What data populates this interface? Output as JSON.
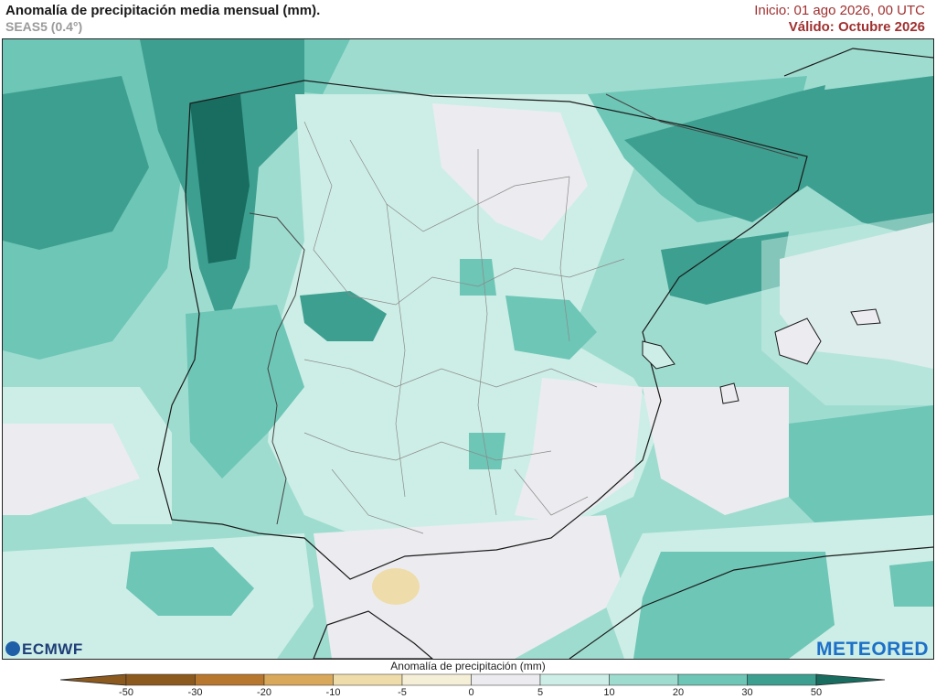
{
  "header": {
    "title": "Anomalía de precipitación media mensual (mm).",
    "model": "SEAS5 (0.4°)",
    "init": "Inicio: 01 ago 2026, 00 UTC",
    "valid": "Válido: Octubre 2026"
  },
  "legend": {
    "title": "Anomalía de precipitación (mm)",
    "ticks": [
      "-50",
      "-30",
      "-20",
      "-10",
      "-5",
      "0",
      "5",
      "10",
      "20",
      "30",
      "50"
    ],
    "colors": [
      "#8c5a1e",
      "#b8772f",
      "#d9a85a",
      "#eedcaa",
      "#f6efd8",
      "#ececf0",
      "#cdeee6",
      "#9fdcd0",
      "#6dc6b6",
      "#3d9f90",
      "#186d60"
    ]
  },
  "logos": {
    "left": "ECMWF",
    "right": "METEORED"
  }
}
